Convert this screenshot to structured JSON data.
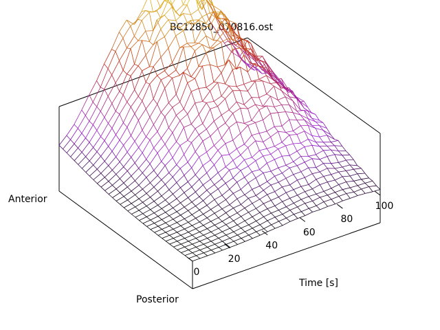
{
  "chart_data": {
    "type": "surface",
    "title": "BC12850_070816.ost",
    "xlabel": "Time [s]",
    "y_end_labels": {
      "start": "Anterior",
      "end": "Posterior"
    },
    "x_ticks": [
      "0",
      "20",
      "40",
      "60",
      "80",
      "100"
    ],
    "xlim": [
      0,
      100
    ],
    "colormap": [
      "#000000",
      "#9a20d0",
      "#c03018",
      "#e8e020"
    ],
    "surface": {
      "description_free": true,
      "time_samples": [
        0,
        4,
        8,
        12,
        16,
        20,
        24,
        28,
        32,
        36,
        40,
        44,
        48,
        52,
        56,
        60,
        64,
        68,
        72,
        76,
        80,
        84,
        88,
        92,
        96,
        100
      ],
      "position_samples": 36,
      "peak_time": 60,
      "peak_position_fraction": 0.0,
      "rise_width_s": 24,
      "spatial_decay": 3.2,
      "noise_fraction": 0.08
    }
  }
}
